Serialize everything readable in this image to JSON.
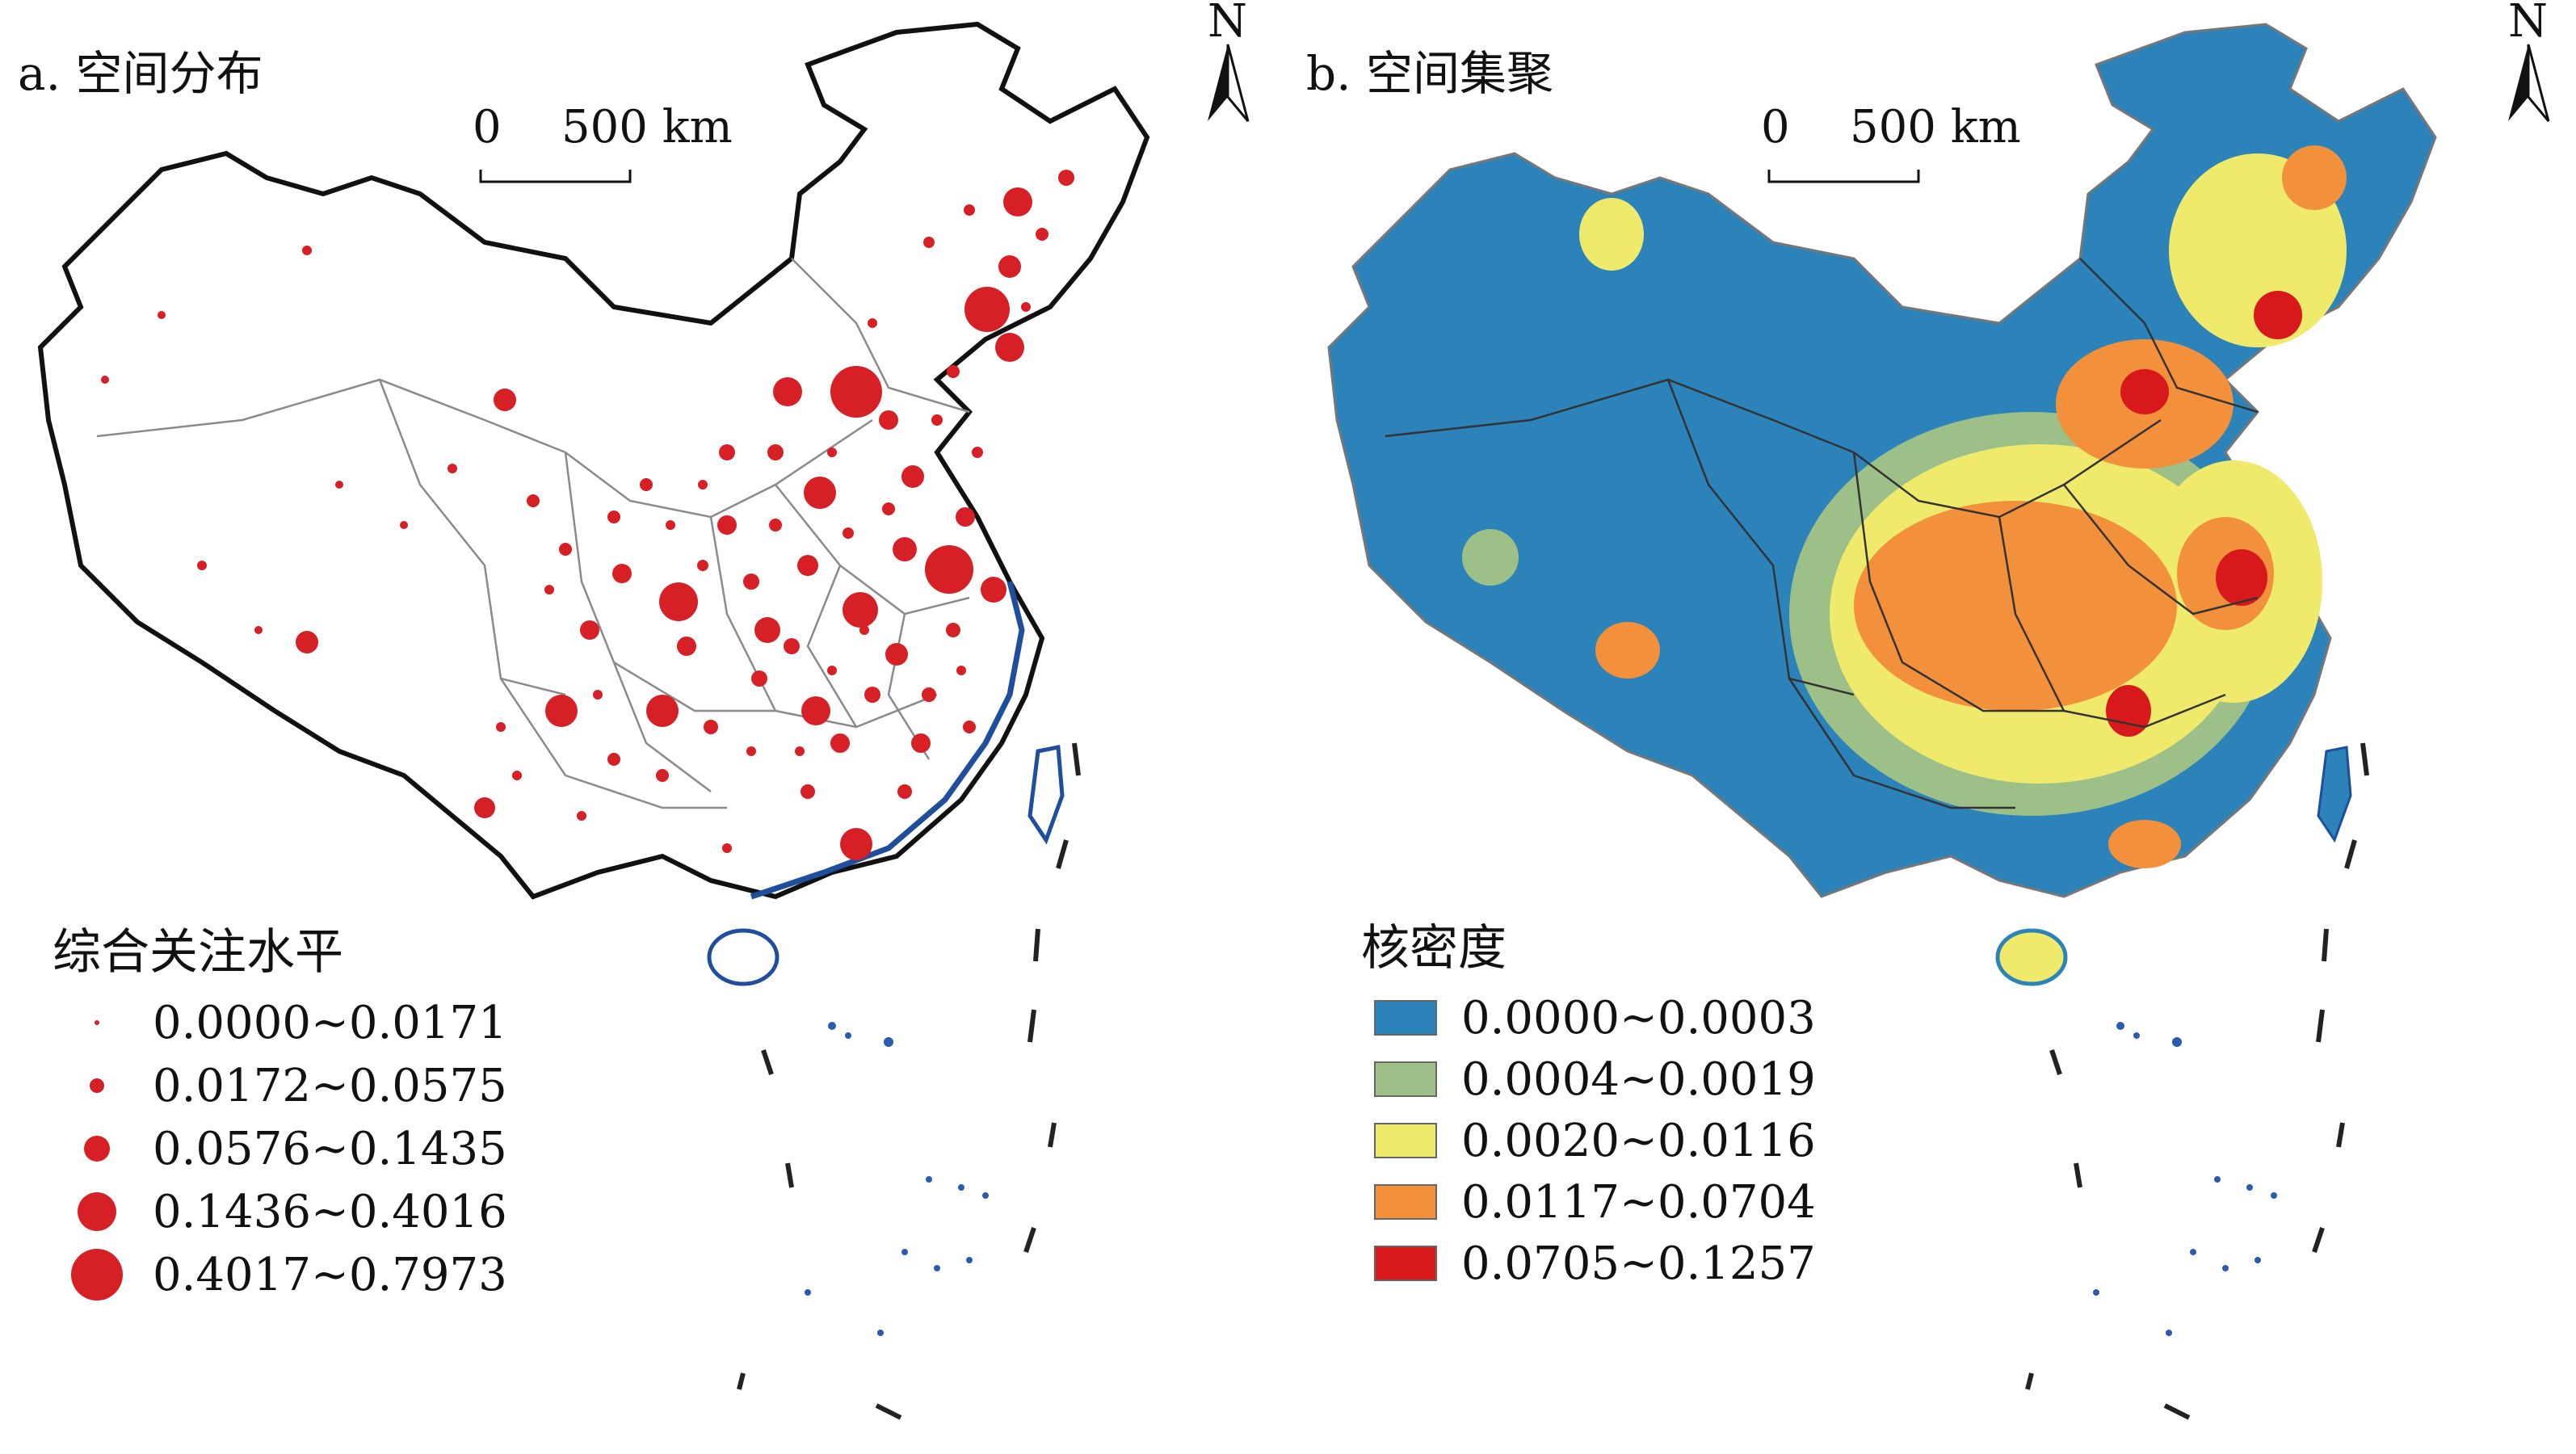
{
  "panel_a": {
    "title": "a. 空间分布",
    "legend_title": "综合关注水平",
    "legend": [
      {
        "label": "0.0000~0.0171",
        "symbol_size_class": 1
      },
      {
        "label": "0.0172~0.0575",
        "symbol_size_class": 2
      },
      {
        "label": "0.0576~0.1435",
        "symbol_size_class": 3
      },
      {
        "label": "0.1436~0.4016",
        "symbol_size_class": 4
      },
      {
        "label": "0.4017~0.7973",
        "symbol_size_class": 5
      }
    ],
    "symbol_color": "#d71f26"
  },
  "panel_b": {
    "title": "b. 空间集聚",
    "legend_title": "核密度",
    "legend": [
      {
        "label": "0.0000~0.0003",
        "color": "#2b83ba"
      },
      {
        "label": "0.0004~0.0019",
        "color": "#9dbf88"
      },
      {
        "label": "0.0020~0.0116",
        "color": "#efea6c"
      },
      {
        "label": "0.0117~0.0704",
        "color": "#f2903c"
      },
      {
        "label": "0.0705~0.1257",
        "color": "#d7191c"
      }
    ]
  },
  "north_arrow": {
    "label": "N"
  },
  "scale_bar": {
    "zero": "0",
    "distance": "500 km"
  }
}
